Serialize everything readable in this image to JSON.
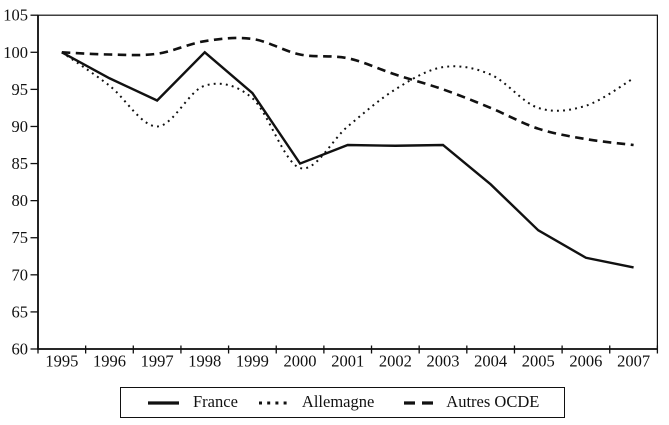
{
  "chart_data": {
    "type": "line",
    "title": "",
    "xlabel": "",
    "ylabel": "",
    "categories": [
      "1995",
      "1996",
      "1997",
      "1998",
      "1999",
      "2000",
      "2001",
      "2002",
      "2003",
      "2004",
      "2005",
      "2006",
      "2007"
    ],
    "series": [
      {
        "name": "France",
        "style": "solid",
        "smooth": false,
        "values": [
          100,
          96.5,
          93.5,
          100,
          94.5,
          85,
          87.5,
          87.4,
          87.5,
          82.2,
          76,
          72.3,
          71
        ]
      },
      {
        "name": "Allemagne",
        "style": "dotted",
        "smooth": true,
        "values": [
          100,
          95.5,
          90,
          95.5,
          93.8,
          84.4,
          90,
          95,
          98,
          97,
          92.5,
          92.8,
          96.5
        ]
      },
      {
        "name": "Autres OCDE",
        "style": "dashed",
        "smooth": true,
        "values": [
          100,
          99.7,
          99.8,
          101.5,
          101.8,
          99.7,
          99.2,
          97,
          95,
          92.5,
          89.7,
          88.3,
          87.5
        ]
      }
    ],
    "y_axis": {
      "min": 60,
      "max": 105,
      "step": 5,
      "tick_labels": [
        "60",
        "65",
        "70",
        "75",
        "80",
        "85",
        "90",
        "95",
        "100",
        "105"
      ]
    },
    "x_axis": {
      "ticks_between_categories": true
    },
    "legend": {
      "position": "bottom-center",
      "entries": [
        "France",
        "Allemagne",
        "Autres OCDE"
      ]
    },
    "grid": false,
    "line_color": "#111111",
    "background": "#ffffff"
  }
}
